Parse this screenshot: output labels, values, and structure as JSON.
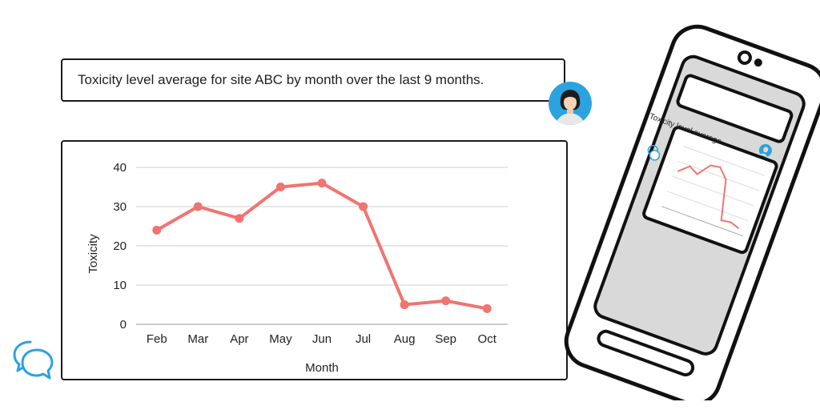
{
  "query": {
    "text": "Toxicity level average for site ABC by month over the last 9 months."
  },
  "phone": {
    "mini_title": "Toxicity level average..."
  },
  "icons": {
    "avatar": "user-avatar-icon",
    "chat": "chat-bubbles-icon"
  },
  "colors": {
    "line": "#f07470",
    "phone_screen": "#d9d9d9",
    "avatar_bg": "#2aa3df",
    "chat_logo": "#2aa3df"
  },
  "chart_data": {
    "type": "line",
    "title": "",
    "xlabel": "Month",
    "ylabel": "Toxicity",
    "categories": [
      "Feb",
      "Mar",
      "Apr",
      "May",
      "Jun",
      "Jul",
      "Aug",
      "Sep",
      "Oct"
    ],
    "series": [
      {
        "values": [
          24,
          30,
          27,
          35,
          36,
          30,
          5,
          6,
          4
        ]
      }
    ],
    "ylim": [
      0,
      40
    ],
    "yticks": [
      0,
      10,
      20,
      30,
      40
    ],
    "grid": true,
    "legend": "none"
  }
}
